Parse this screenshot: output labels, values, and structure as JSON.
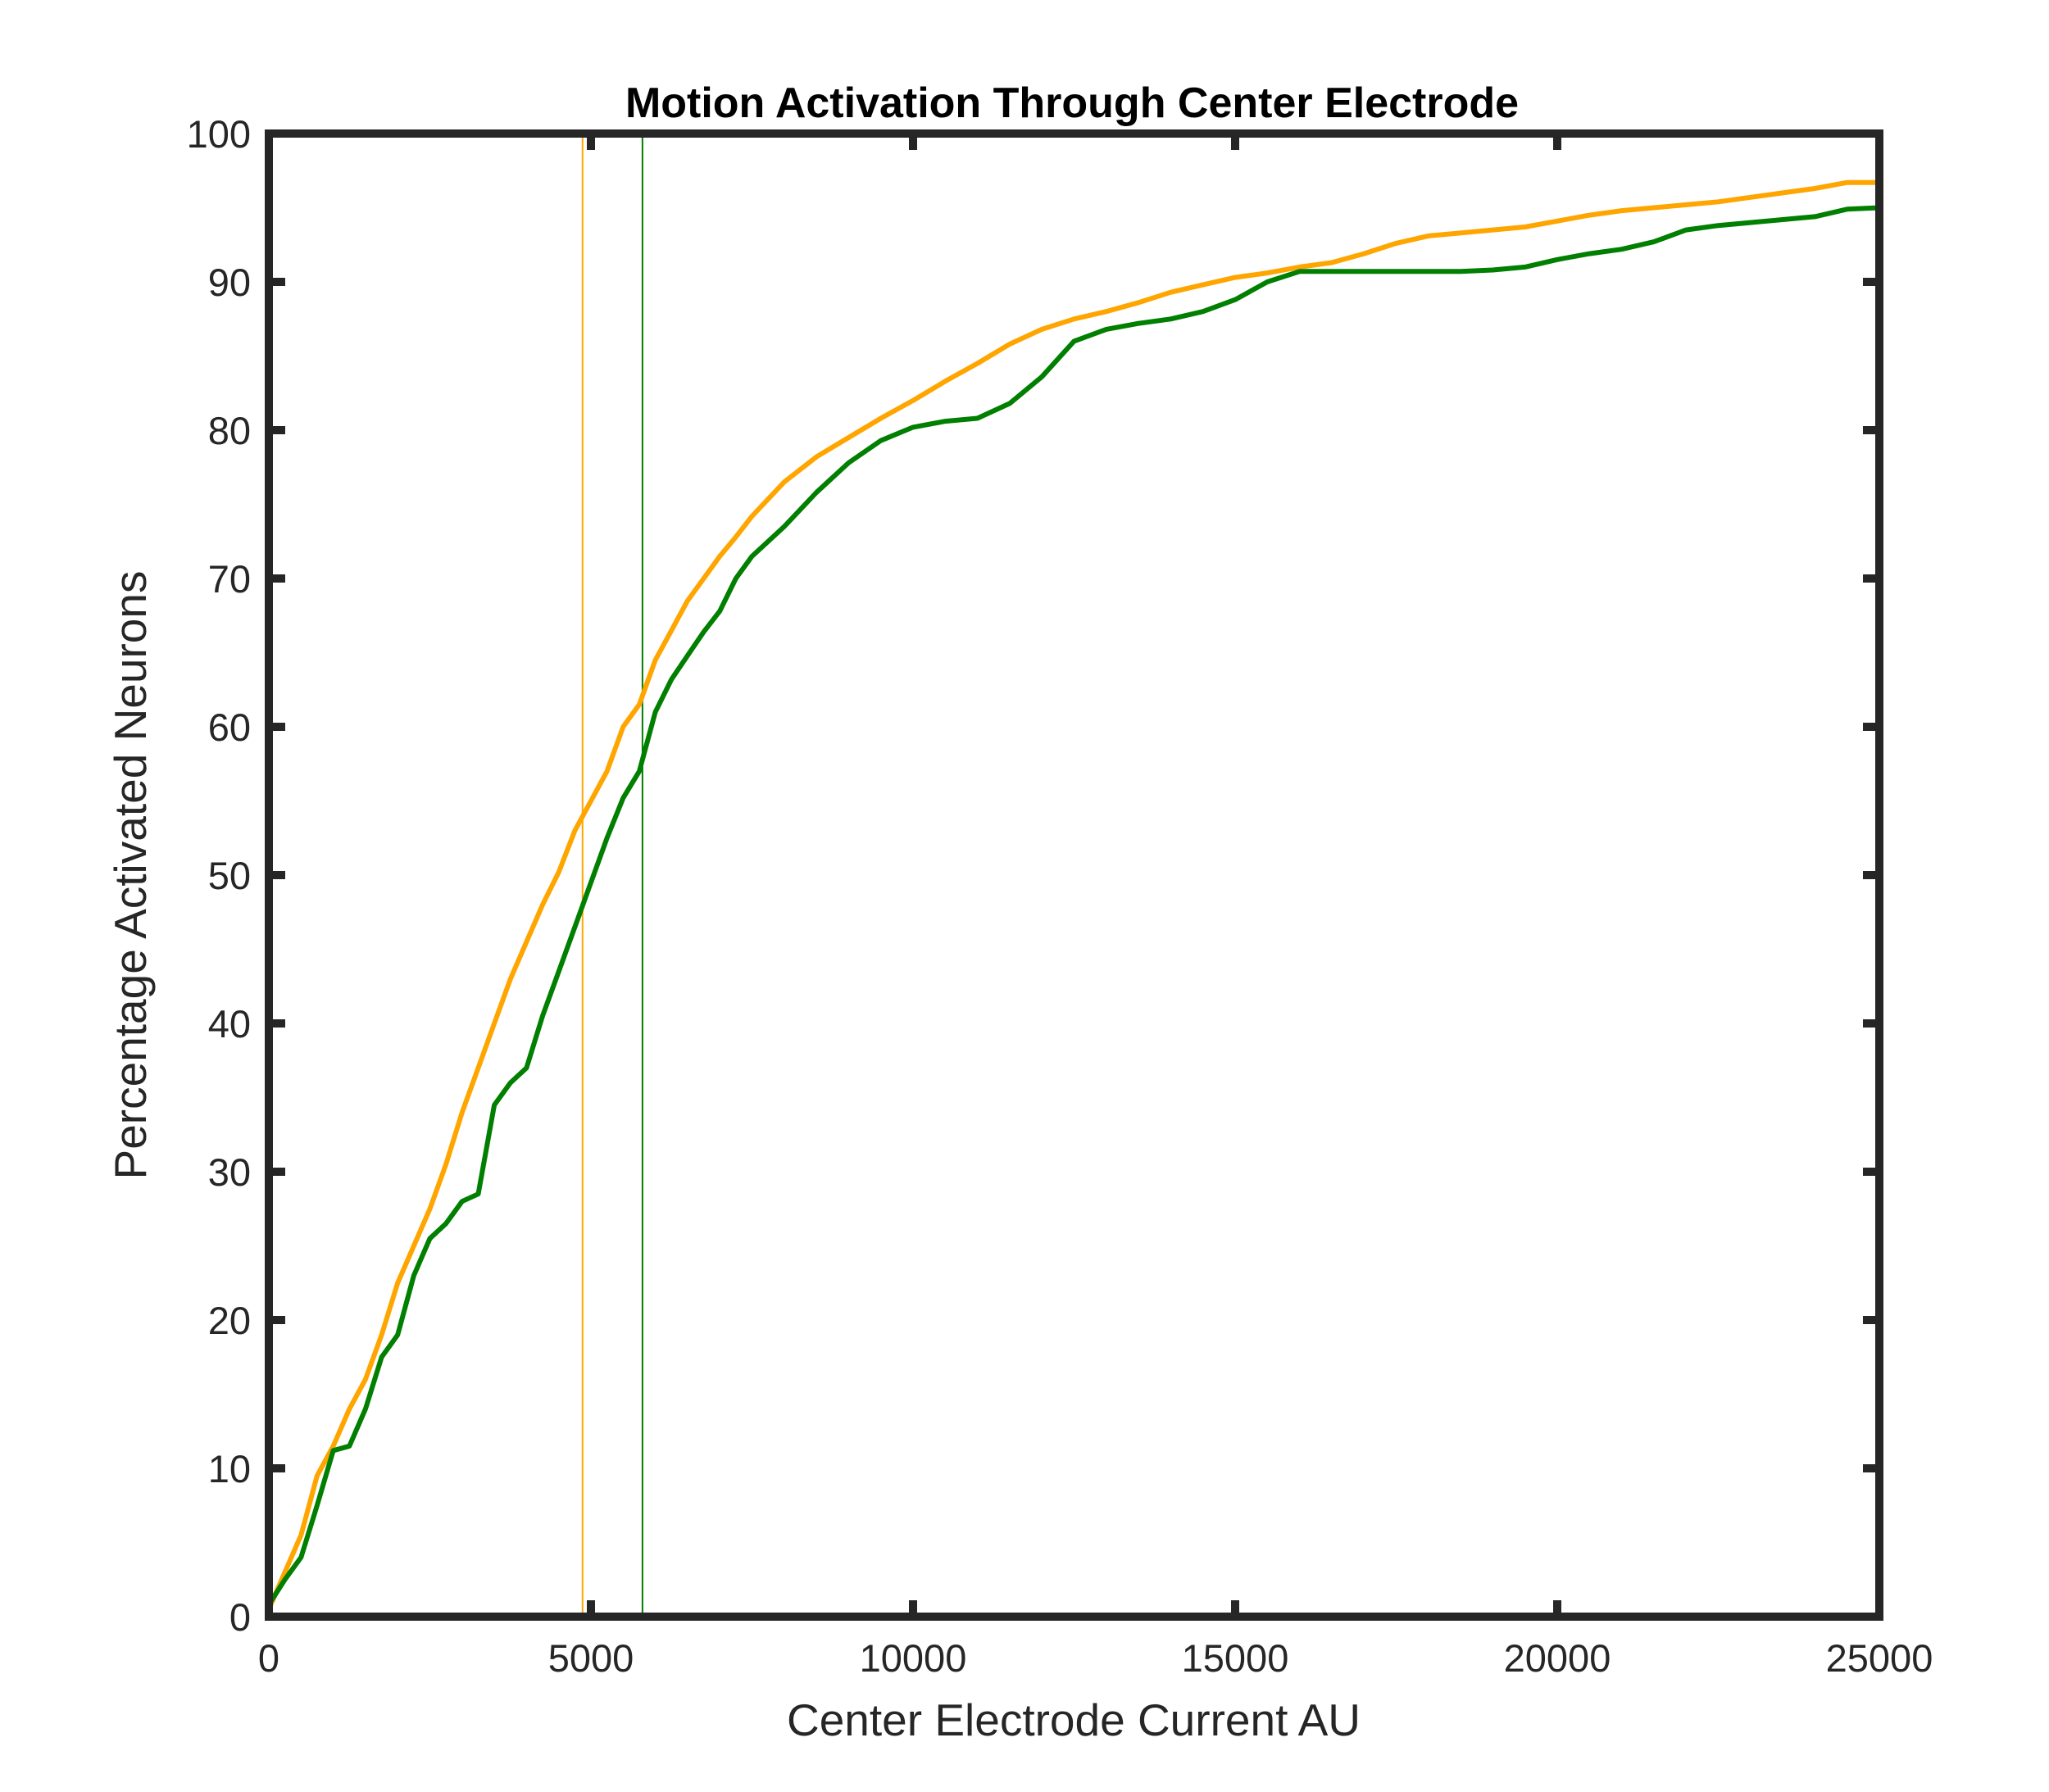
{
  "chart_data": {
    "type": "line",
    "title": "Motion Activation Through Center Electrode",
    "xlabel": "Center Electrode Current AU",
    "ylabel": "Percentage Activated Neurons",
    "xlim": [
      0,
      25000
    ],
    "ylim": [
      0,
      100
    ],
    "xticks": [
      0,
      5000,
      10000,
      15000,
      20000,
      25000
    ],
    "yticks": [
      0,
      10,
      20,
      30,
      40,
      50,
      60,
      70,
      80,
      90,
      100
    ],
    "grid": false,
    "legend": "none",
    "series": [
      {
        "color": "#FFA500",
        "x": [
          0,
          250,
          500,
          750,
          1000,
          1250,
          1500,
          1750,
          2000,
          2250,
          2500,
          2750,
          3000,
          3250,
          3500,
          3750,
          4000,
          4250,
          4500,
          4750,
          5000,
          5250,
          5500,
          5750,
          6000,
          6250,
          6500,
          6750,
          7000,
          7250,
          7500,
          8000,
          8500,
          9000,
          9500,
          10000,
          10500,
          11000,
          11500,
          12000,
          12500,
          13000,
          13500,
          14000,
          14500,
          15000,
          15500,
          16000,
          16500,
          17000,
          17500,
          18000,
          18500,
          19000,
          19500,
          20000,
          20500,
          21000,
          21500,
          22000,
          22500,
          23000,
          23500,
          24000,
          24500,
          25000
        ],
        "y": [
          0.5,
          3,
          5.5,
          9.5,
          11.5,
          14,
          16,
          19,
          22.5,
          25,
          27.5,
          30.5,
          34,
          37,
          40,
          43,
          45.5,
          48,
          50.2,
          53,
          55,
          57,
          60,
          61.5,
          64.5,
          66.5,
          68.5,
          70,
          71.5,
          72.8,
          74.2,
          76.5,
          78.2,
          79.5,
          80.8,
          82,
          83.3,
          84.5,
          85.8,
          86.8,
          87.5,
          88,
          88.6,
          89.3,
          89.8,
          90.3,
          90.6,
          91,
          91.3,
          91.9,
          92.6,
          93.1,
          93.3,
          93.5,
          93.7,
          94.1,
          94.5,
          94.8,
          95,
          95.2,
          95.4,
          95.7,
          96,
          96.3,
          96.7,
          96.7
        ]
      },
      {
        "color": "#007F00",
        "x": [
          0,
          250,
          500,
          750,
          1000,
          1250,
          1500,
          1750,
          2000,
          2250,
          2500,
          2750,
          3000,
          3250,
          3500,
          3750,
          4000,
          4250,
          4500,
          4750,
          5000,
          5250,
          5500,
          5750,
          6000,
          6250,
          6500,
          6750,
          7000,
          7250,
          7500,
          8000,
          8500,
          9000,
          9500,
          10000,
          10500,
          11000,
          11500,
          12000,
          12500,
          13000,
          13500,
          14000,
          14500,
          15000,
          15500,
          16000,
          16500,
          17000,
          17500,
          18000,
          18500,
          19000,
          19500,
          20000,
          20500,
          21000,
          21500,
          22000,
          22500,
          23000,
          23500,
          24000,
          24500,
          25000
        ],
        "y": [
          0.8,
          2.5,
          4,
          7.5,
          11.2,
          11.5,
          14,
          17.5,
          19,
          23,
          25.5,
          26.5,
          28,
          28.5,
          34.5,
          36,
          37,
          40.5,
          43.5,
          46.5,
          49.5,
          52.5,
          55.2,
          57,
          61,
          63.2,
          64.8,
          66.4,
          67.8,
          70,
          71.5,
          73.5,
          75.8,
          77.8,
          79.3,
          80.2,
          80.6,
          80.8,
          81.8,
          83.6,
          86,
          86.8,
          87.2,
          87.5,
          88,
          88.8,
          90,
          90.7,
          90.7,
          90.7,
          90.7,
          90.7,
          90.7,
          90.8,
          91,
          91.5,
          91.9,
          92.2,
          92.7,
          93.5,
          93.8,
          94,
          94.2,
          94.4,
          94.9,
          95
        ]
      }
    ],
    "reference_lines": [
      {
        "axis": "x",
        "value": 4870,
        "color": "#FFA500"
      },
      {
        "axis": "x",
        "value": 5800,
        "color": "#007F00"
      }
    ]
  }
}
